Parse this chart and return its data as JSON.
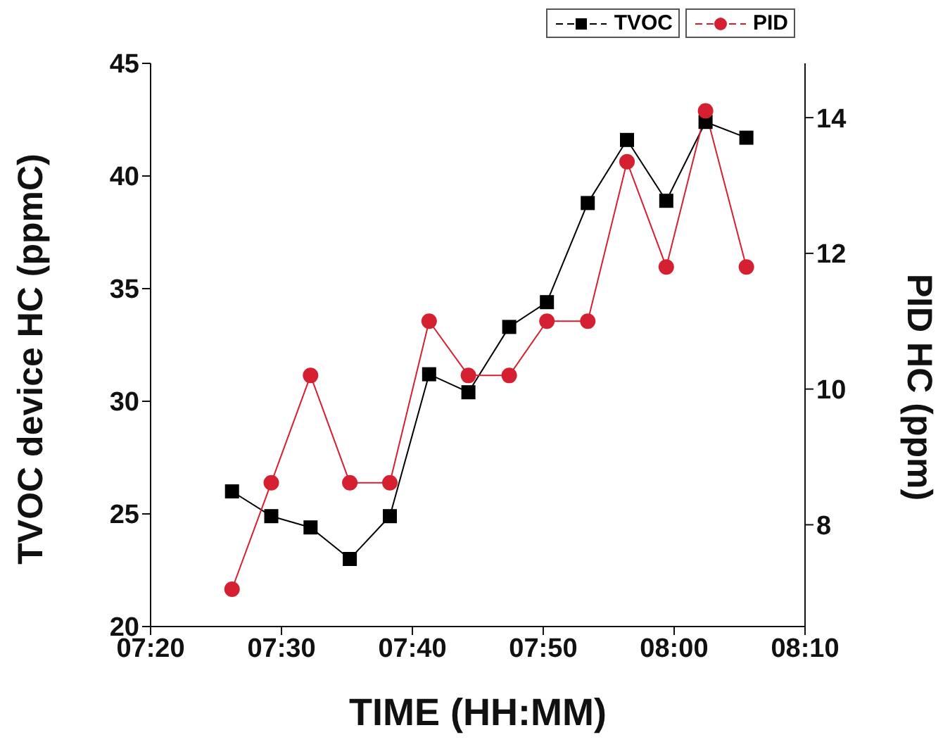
{
  "chart_data": {
    "type": "line",
    "xlabel": "TIME (HH:MM)",
    "ylabel": "TVOC device HC (ppmC)",
    "y2label": "PID HC (ppm)",
    "x": [
      7.437,
      7.487,
      7.537,
      7.587,
      7.638,
      7.688,
      7.738,
      7.79,
      7.838,
      7.89,
      7.94,
      7.99,
      8.04,
      8.092
    ],
    "series": [
      {
        "name": "TVOC",
        "color": "#000000",
        "marker": "square",
        "values": [
          26.0,
          24.9,
          24.4,
          23.0,
          24.9,
          31.2,
          30.4,
          33.3,
          34.4,
          38.8,
          41.6,
          38.9,
          42.4,
          41.7
        ]
      },
      {
        "name": "PID",
        "color": "#d42030",
        "marker": "circle",
        "axis": "y2",
        "values": [
          7.05,
          8.62,
          10.2,
          8.62,
          8.62,
          11.0,
          10.2,
          10.2,
          11.0,
          11.0,
          13.35,
          11.8,
          14.1,
          11.8
        ]
      }
    ],
    "xlim": [
      7.3333,
      8.1667
    ],
    "xticks": [
      {
        "value": 7.3333,
        "label": "07:20"
      },
      {
        "value": 7.5,
        "label": "07:30"
      },
      {
        "value": 7.6667,
        "label": "07:40"
      },
      {
        "value": 7.8333,
        "label": "07:50"
      },
      {
        "value": 8.0,
        "label": "08:00"
      },
      {
        "value": 8.1667,
        "label": "08:10"
      }
    ],
    "ylim": [
      20,
      45
    ],
    "yticks": [
      20,
      25,
      30,
      35,
      40,
      45
    ],
    "y2lim": [
      6.5,
      14.8
    ],
    "y2ticks": [
      8,
      10,
      12,
      14
    ],
    "legend": "top right",
    "grid": false,
    "line_style": "solid"
  }
}
